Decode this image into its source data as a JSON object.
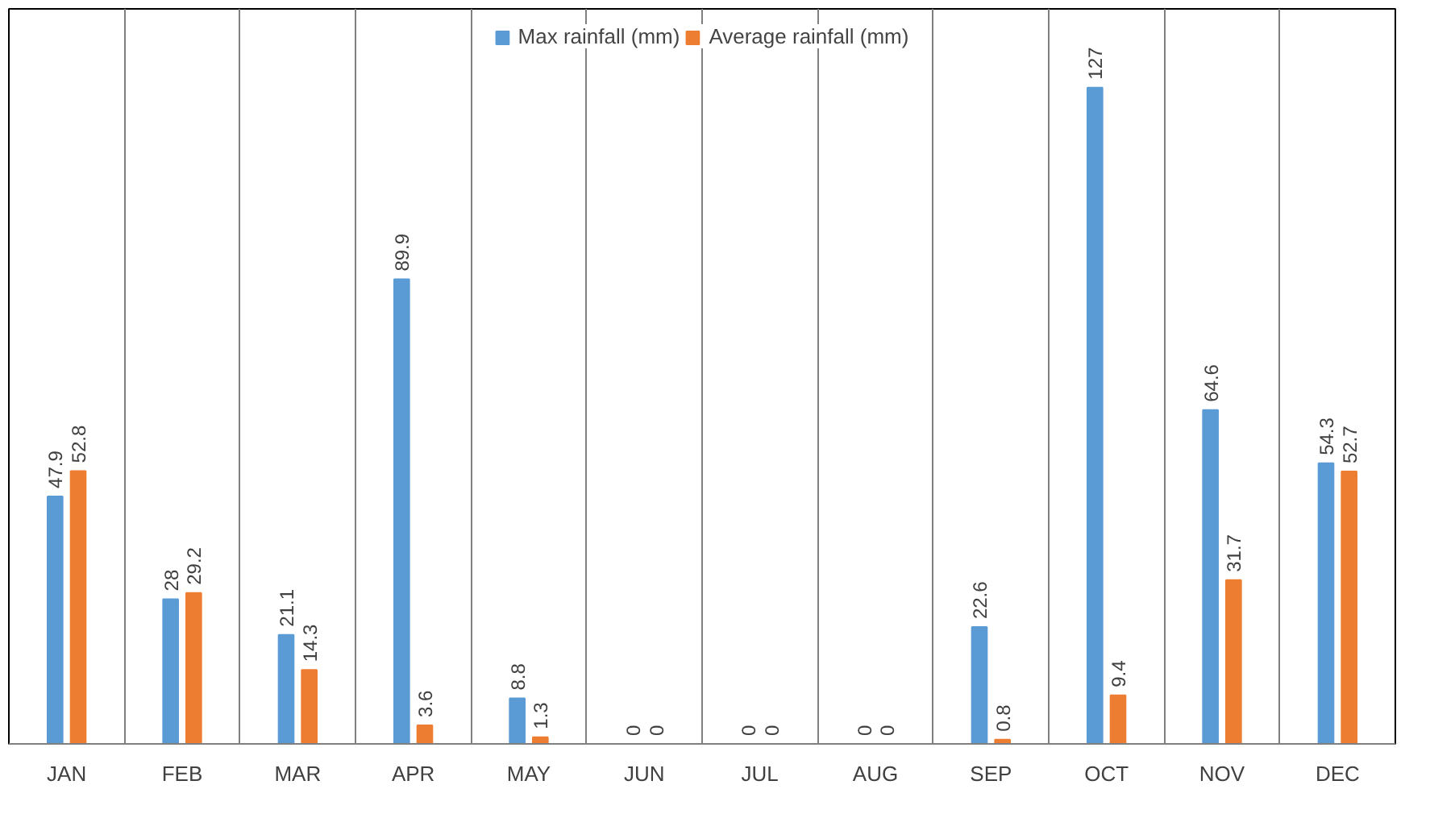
{
  "chart_data": {
    "type": "bar",
    "categories": [
      "JAN",
      "FEB",
      "MAR",
      "APR",
      "MAY",
      "JUN",
      "JUL",
      "AUG",
      "SEP",
      "OCT",
      "NOV",
      "DEC"
    ],
    "series": [
      {
        "name": "Max rainfall (mm)",
        "color": "#5b9bd5",
        "values": [
          47.9,
          28,
          21.1,
          89.9,
          8.8,
          0,
          0,
          0,
          22.6,
          127,
          64.6,
          54.3
        ]
      },
      {
        "name": "Average rainfall (mm)",
        "color": "#ed7d31",
        "values": [
          52.8,
          29.2,
          14.3,
          3.6,
          1.3,
          0,
          0,
          0,
          0.8,
          9.4,
          31.7,
          52.7
        ]
      }
    ],
    "data_labels": true,
    "grid": "x",
    "legend": "top"
  }
}
